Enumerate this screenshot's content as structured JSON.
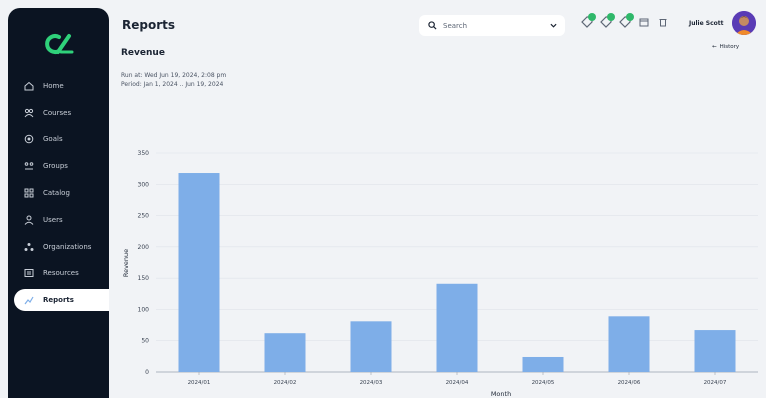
{
  "sidebar": {
    "items": [
      {
        "label": "Home",
        "icon": "home-icon",
        "active": false
      },
      {
        "label": "Courses",
        "icon": "courses-icon",
        "active": false
      },
      {
        "label": "Goals",
        "icon": "goals-icon",
        "active": false
      },
      {
        "label": "Groups",
        "icon": "groups-icon",
        "active": false
      },
      {
        "label": "Catalog",
        "icon": "catalog-icon",
        "active": false
      },
      {
        "label": "Users",
        "icon": "users-icon",
        "active": false
      },
      {
        "label": "Organizations",
        "icon": "organizations-icon",
        "active": false
      },
      {
        "label": "Resources",
        "icon": "resources-icon",
        "active": false
      },
      {
        "label": "Reports",
        "icon": "reports-icon",
        "active": true
      }
    ]
  },
  "header": {
    "title": "Reports",
    "search_placeholder": "Search",
    "user_name": "Julie Scott"
  },
  "report": {
    "title": "Revenue",
    "history_label": "History",
    "run_at": "Run at: Wed Jun 19, 2024, 2:08 pm",
    "period": "Period: Jan 1, 2024 .. Jun 19, 2024"
  },
  "colors": {
    "sidebar_bg": "#0b1422",
    "bar": "#7eaee8",
    "badge": "#2fb86a",
    "page_bg": "#f1f3f6"
  },
  "chart_data": {
    "type": "bar",
    "categories": [
      "2024/01",
      "2024/02",
      "2024/03",
      "2024/04",
      "2024/05",
      "2024/06",
      "2024/07"
    ],
    "values": [
      318,
      62,
      81,
      141,
      24,
      89,
      67
    ],
    "xlabel": "Month",
    "ylabel": "Revenue",
    "ylim": [
      0,
      350
    ],
    "yticks": [
      0,
      50,
      100,
      150,
      200,
      250,
      300,
      350
    ],
    "grid": true
  }
}
